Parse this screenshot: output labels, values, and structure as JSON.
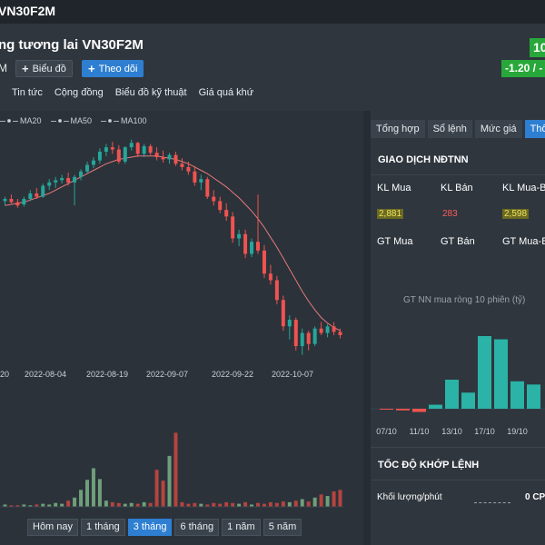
{
  "topbar": {
    "title": "VN30F2M"
  },
  "header": {
    "name": "ng tương lai VN30F2M",
    "code": "M",
    "chart_btn": "Biểu đồ",
    "follow_btn": "Theo dõi",
    "price": "10",
    "change": "-1.20 / -"
  },
  "nav": [
    "Tin tức",
    "Cộng đồng",
    "Biểu đồ kỹ thuật",
    "Giá quá khứ"
  ],
  "ma_legend": [
    "MA20",
    "MA50",
    "MA100"
  ],
  "range_buttons": [
    {
      "label": "Hôm nay",
      "active": false
    },
    {
      "label": "1 tháng",
      "active": false
    },
    {
      "label": "3 tháng",
      "active": true
    },
    {
      "label": "6 tháng",
      "active": false
    },
    {
      "label": "1 năm",
      "active": false
    },
    {
      "label": "5 năm",
      "active": false
    }
  ],
  "tabs": [
    {
      "label": "Tổng hợp",
      "active": false
    },
    {
      "label": "Sổ lệnh",
      "active": false
    },
    {
      "label": "Mức giá",
      "active": false
    },
    {
      "label": "Thố",
      "active": true
    }
  ],
  "foreign": {
    "title": "GIAO DỊCH NĐTNN",
    "kl_mua_label": "KL Mua",
    "kl_ban_label": "KL Bán",
    "kl_net_label": "KL Mua-B",
    "kl_mua": "2,881",
    "kl_ban": "283",
    "kl_net": "2,598",
    "gt_mua_label": "GT Mua",
    "gt_ban_label": "GT Bán",
    "gt_net_label": "GT Mua-B",
    "mini_title": "GT NN mua ròng 10 phiên (tỷ)"
  },
  "speed": {
    "title": "TỐC ĐỘ KHỚP LỆNH",
    "label": "Khối lượng/phút",
    "value": "0 CP"
  },
  "colors": {
    "up": "#26a69a",
    "down": "#ef5350",
    "accent": "#2e7fd1",
    "ma": "#e6797a",
    "teal_bar": "#2ab3a6"
  },
  "chart_data": [
    {
      "type": "candlestick",
      "x_tick_labels": [
        "20",
        "2022-08-04",
        "2022-08-19",
        "2022-09-07",
        "2022-09-22",
        "2022-10-07"
      ],
      "ohlc": [
        {
          "o": 1266,
          "h": 1270,
          "l": 1262,
          "c": 1268
        },
        {
          "o": 1268,
          "h": 1272,
          "l": 1264,
          "c": 1265
        },
        {
          "o": 1265,
          "h": 1268,
          "l": 1260,
          "c": 1262
        },
        {
          "o": 1263,
          "h": 1270,
          "l": 1261,
          "c": 1268
        },
        {
          "o": 1268,
          "h": 1276,
          "l": 1266,
          "c": 1273
        },
        {
          "o": 1273,
          "h": 1278,
          "l": 1268,
          "c": 1270
        },
        {
          "o": 1270,
          "h": 1282,
          "l": 1269,
          "c": 1280
        },
        {
          "o": 1280,
          "h": 1286,
          "l": 1276,
          "c": 1283
        },
        {
          "o": 1283,
          "h": 1288,
          "l": 1278,
          "c": 1285
        },
        {
          "o": 1285,
          "h": 1290,
          "l": 1282,
          "c": 1287
        },
        {
          "o": 1287,
          "h": 1292,
          "l": 1280,
          "c": 1283
        },
        {
          "o": 1283,
          "h": 1290,
          "l": 1262,
          "c": 1288
        },
        {
          "o": 1288,
          "h": 1295,
          "l": 1285,
          "c": 1293
        },
        {
          "o": 1293,
          "h": 1302,
          "l": 1291,
          "c": 1299
        },
        {
          "o": 1299,
          "h": 1306,
          "l": 1296,
          "c": 1303
        },
        {
          "o": 1303,
          "h": 1314,
          "l": 1300,
          "c": 1311
        },
        {
          "o": 1311,
          "h": 1318,
          "l": 1307,
          "c": 1315
        },
        {
          "o": 1315,
          "h": 1320,
          "l": 1309,
          "c": 1313
        },
        {
          "o": 1313,
          "h": 1317,
          "l": 1300,
          "c": 1302
        },
        {
          "o": 1302,
          "h": 1316,
          "l": 1300,
          "c": 1315
        },
        {
          "o": 1315,
          "h": 1322,
          "l": 1312,
          "c": 1319
        },
        {
          "o": 1319,
          "h": 1320,
          "l": 1306,
          "c": 1309
        },
        {
          "o": 1309,
          "h": 1318,
          "l": 1306,
          "c": 1316
        },
        {
          "o": 1316,
          "h": 1318,
          "l": 1308,
          "c": 1310
        },
        {
          "o": 1310,
          "h": 1315,
          "l": 1303,
          "c": 1306
        },
        {
          "o": 1306,
          "h": 1312,
          "l": 1301,
          "c": 1304
        },
        {
          "o": 1304,
          "h": 1310,
          "l": 1300,
          "c": 1308
        },
        {
          "o": 1308,
          "h": 1311,
          "l": 1298,
          "c": 1300
        },
        {
          "o": 1300,
          "h": 1305,
          "l": 1294,
          "c": 1297
        },
        {
          "o": 1297,
          "h": 1302,
          "l": 1290,
          "c": 1293
        },
        {
          "o": 1293,
          "h": 1298,
          "l": 1280,
          "c": 1283
        },
        {
          "o": 1283,
          "h": 1290,
          "l": 1276,
          "c": 1286
        },
        {
          "o": 1286,
          "h": 1288,
          "l": 1268,
          "c": 1270
        },
        {
          "o": 1270,
          "h": 1276,
          "l": 1262,
          "c": 1266
        },
        {
          "o": 1266,
          "h": 1270,
          "l": 1255,
          "c": 1258
        },
        {
          "o": 1258,
          "h": 1264,
          "l": 1248,
          "c": 1252
        },
        {
          "o": 1252,
          "h": 1256,
          "l": 1228,
          "c": 1232
        },
        {
          "o": 1232,
          "h": 1240,
          "l": 1225,
          "c": 1236
        },
        {
          "o": 1236,
          "h": 1240,
          "l": 1214,
          "c": 1218
        },
        {
          "o": 1218,
          "h": 1232,
          "l": 1215,
          "c": 1229
        },
        {
          "o": 1229,
          "h": 1272,
          "l": 1218,
          "c": 1221
        },
        {
          "o": 1221,
          "h": 1226,
          "l": 1196,
          "c": 1200
        },
        {
          "o": 1200,
          "h": 1208,
          "l": 1190,
          "c": 1194
        },
        {
          "o": 1194,
          "h": 1198,
          "l": 1172,
          "c": 1176
        },
        {
          "o": 1176,
          "h": 1180,
          "l": 1148,
          "c": 1152
        },
        {
          "o": 1152,
          "h": 1162,
          "l": 1140,
          "c": 1158
        },
        {
          "o": 1158,
          "h": 1160,
          "l": 1130,
          "c": 1134
        },
        {
          "o": 1134,
          "h": 1150,
          "l": 1126,
          "c": 1146
        },
        {
          "o": 1146,
          "h": 1148,
          "l": 1130,
          "c": 1136
        },
        {
          "o": 1136,
          "h": 1152,
          "l": 1134,
          "c": 1150
        },
        {
          "o": 1150,
          "h": 1156,
          "l": 1144,
          "c": 1146
        },
        {
          "o": 1146,
          "h": 1154,
          "l": 1142,
          "c": 1152
        },
        {
          "o": 1152,
          "h": 1156,
          "l": 1144,
          "c": 1147
        },
        {
          "o": 1147,
          "h": 1150,
          "l": 1141,
          "c": 1144
        }
      ],
      "ma20": [
        1262,
        1263,
        1264,
        1265,
        1267,
        1269,
        1271,
        1273,
        1276,
        1279,
        1282,
        1285,
        1288,
        1291,
        1294,
        1297,
        1300,
        1302,
        1304,
        1305,
        1306,
        1307,
        1307,
        1307,
        1307,
        1306,
        1305,
        1304,
        1302,
        1300,
        1297,
        1294,
        1291,
        1287,
        1283,
        1279,
        1274,
        1269,
        1263,
        1257,
        1250,
        1242,
        1233,
        1224,
        1214,
        1204,
        1194,
        1184,
        1175,
        1167,
        1160,
        1155,
        1151,
        1148
      ],
      "y_range": [
        1120,
        1330
      ],
      "volume": [
        3,
        2,
        2,
        3,
        2,
        3,
        4,
        3,
        5,
        4,
        8,
        12,
        22,
        35,
        50,
        36,
        8,
        6,
        5,
        4,
        5,
        4,
        6,
        5,
        48,
        34,
        66,
        96,
        6,
        4,
        5,
        4,
        3,
        5,
        4,
        6,
        5,
        4,
        6,
        3,
        5,
        4,
        6,
        5,
        7,
        6,
        8,
        10,
        7,
        12,
        16,
        14,
        20,
        22
      ],
      "volume_range": [
        0,
        100
      ]
    },
    {
      "type": "bar",
      "title": "GT NN mua ròng 10 phiên (tỷ)",
      "categories": [
        "07/10",
        "10/10",
        "11/10",
        "12/10",
        "13/10",
        "14/10",
        "17/10",
        "18/10",
        "19/10",
        "20/10"
      ],
      "x_tick_labels": [
        "07/10",
        "11/10",
        "13/10",
        "17/10",
        "19/10"
      ],
      "values": [
        -1,
        -2,
        -4,
        5,
        36,
        20,
        90,
        86,
        34,
        30
      ]
    }
  ]
}
